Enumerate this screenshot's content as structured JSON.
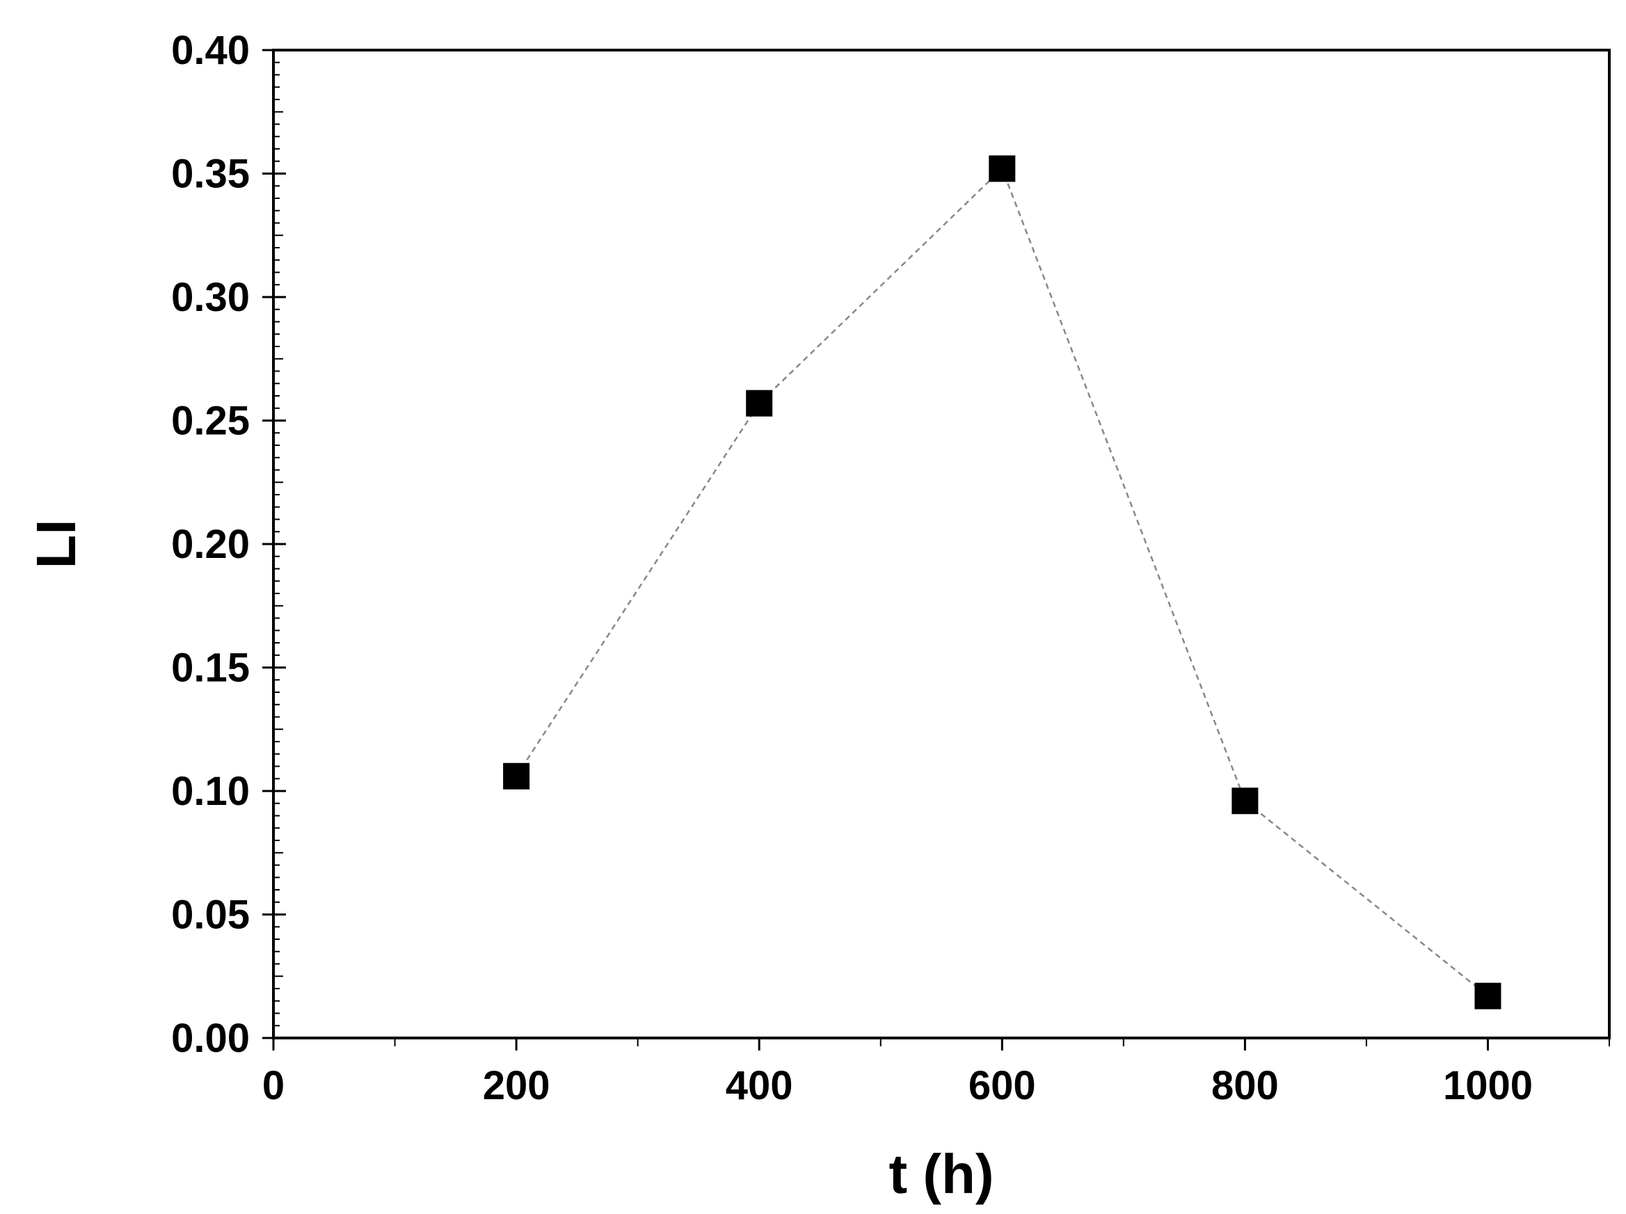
{
  "chart_data": {
    "type": "scatter",
    "xlabel": "t (h)",
    "ylabel": "LI",
    "xlim": [
      0,
      1100
    ],
    "ylim": [
      0,
      0.4
    ],
    "x_ticks": [
      0,
      200,
      400,
      600,
      800,
      1000
    ],
    "x_tick_labels": [
      "0",
      "200",
      "400",
      "600",
      "800",
      "1000"
    ],
    "y_ticks": [
      0,
      0.05,
      0.1,
      0.15,
      0.2,
      0.25,
      0.3,
      0.35,
      0.4
    ],
    "y_tick_labels": [
      "0.00",
      "0.05",
      "0.10",
      "0.15",
      "0.20",
      "0.25",
      "0.30",
      "0.35",
      "0.40"
    ],
    "series": [
      {
        "x": [
          200,
          400,
          600,
          800,
          1000
        ],
        "y": [
          0.106,
          0.257,
          0.352,
          0.096,
          0.017
        ],
        "marker": "square",
        "color": "#000000",
        "line_style": "dashed",
        "line_color": "#888888"
      }
    ]
  }
}
